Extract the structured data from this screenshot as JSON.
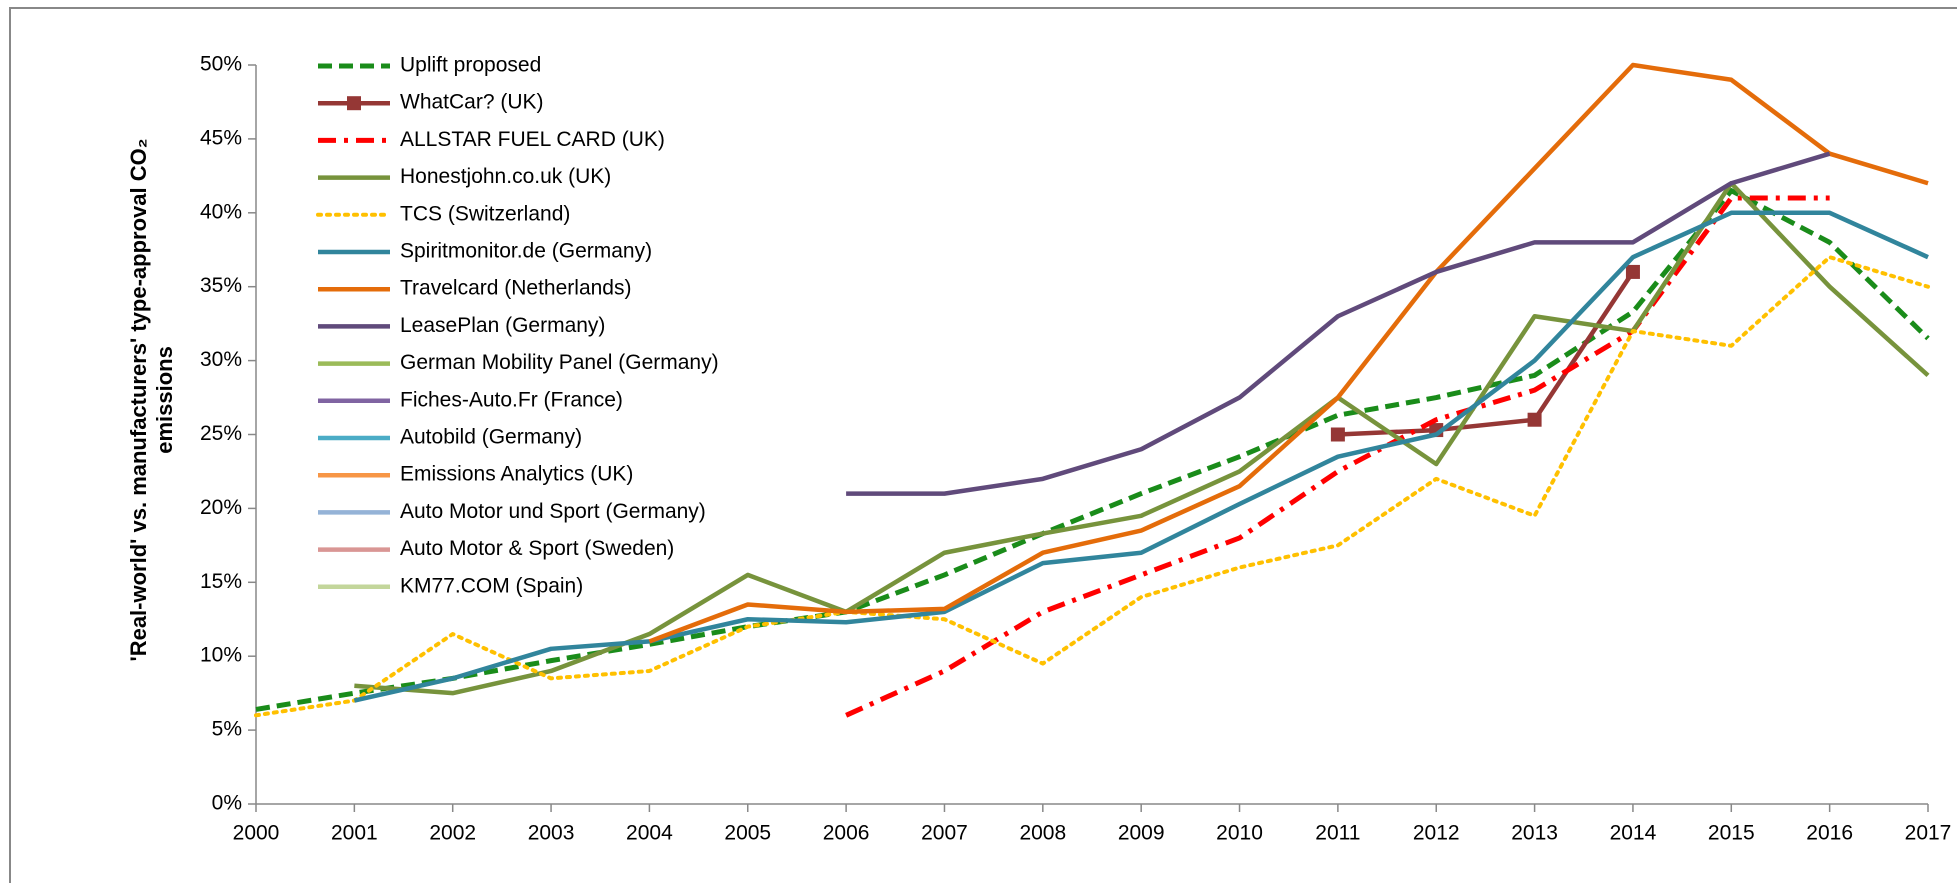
{
  "chart_data": {
    "type": "line",
    "ylabel": [
      "'Real-world' vs. manufacturers' type-approval CO₂",
      "emissions"
    ],
    "x": [
      2000,
      2001,
      2002,
      2003,
      2004,
      2005,
      2006,
      2007,
      2008,
      2009,
      2010,
      2011,
      2012,
      2013,
      2014,
      2015,
      2016,
      2017
    ],
    "xlim": [
      2000,
      2017
    ],
    "xticks": [
      2000,
      2001,
      2002,
      2003,
      2004,
      2005,
      2006,
      2007,
      2008,
      2009,
      2010,
      2011,
      2012,
      2013,
      2014,
      2015,
      2016,
      2017
    ],
    "ylim": [
      0,
      50
    ],
    "yticks": [
      {
        "value": 0,
        "label": "0%"
      },
      {
        "value": 5,
        "label": "5%"
      },
      {
        "value": 10,
        "label": "10%"
      },
      {
        "value": 15,
        "label": "15%"
      },
      {
        "value": 20,
        "label": "20%"
      },
      {
        "value": 25,
        "label": "25%"
      },
      {
        "value": 30,
        "label": "30%"
      },
      {
        "value": 35,
        "label": "35%"
      },
      {
        "value": 40,
        "label": "40%"
      },
      {
        "value": 45,
        "label": "45%"
      },
      {
        "value": 50,
        "label": "50%"
      }
    ],
    "legend": "upper left",
    "series": [
      {
        "name": "Uplift proposed",
        "color": "#1a8c1a",
        "style": "dashed",
        "values": [
          6.4,
          7.5,
          8.5,
          9.7,
          10.8,
          12,
          13,
          15.5,
          18.3,
          21,
          23.5,
          26.3,
          27.5,
          29,
          33.3,
          41.5,
          38,
          31.5
        ]
      },
      {
        "name": "WhatCar? (UK)",
        "color": "#953735",
        "style": "solid",
        "marker": "square",
        "values": [
          null,
          null,
          null,
          null,
          null,
          null,
          null,
          null,
          null,
          null,
          null,
          25,
          25.3,
          26,
          36,
          null,
          null,
          null
        ]
      },
      {
        "name": "ALLSTAR FUEL CARD (UK)",
        "color": "#ff0000",
        "style": "dashdot",
        "values": [
          null,
          null,
          null,
          null,
          null,
          null,
          6,
          9,
          13,
          15.5,
          18,
          22.5,
          26,
          28,
          32,
          41,
          41,
          null
        ]
      },
      {
        "name": "Honestjohn.co.uk (UK)",
        "color": "#77933c",
        "style": "solid",
        "values": [
          null,
          8,
          7.5,
          9,
          11.5,
          15.5,
          13,
          17,
          18.3,
          19.5,
          22.5,
          27.5,
          23,
          33,
          32,
          42,
          35,
          29
        ]
      },
      {
        "name": "TCS (Switzerland)",
        "color": "#ffc000",
        "style": "dotted",
        "values": [
          6,
          7,
          11.5,
          8.5,
          9,
          12,
          13,
          12.5,
          9.5,
          14,
          16,
          17.5,
          22,
          19.5,
          32,
          31,
          37,
          35
        ]
      },
      {
        "name": "Spiritmonitor.de (Germany)",
        "color": "#31859c",
        "style": "solid",
        "values": [
          null,
          7,
          8.5,
          10.5,
          11,
          12.5,
          12.3,
          13,
          16.3,
          17,
          20.3,
          23.5,
          25,
          30,
          37,
          40,
          40,
          37
        ]
      },
      {
        "name": "Travelcard (Netherlands)",
        "color": "#e46c0a",
        "style": "solid",
        "values": [
          null,
          null,
          null,
          null,
          11,
          13.5,
          13,
          13.2,
          17,
          18.5,
          21.5,
          27.5,
          36,
          43,
          50,
          49,
          44,
          42
        ]
      },
      {
        "name": "LeasePlan (Germany)",
        "color": "#604a7b",
        "style": "solid",
        "values": [
          null,
          null,
          null,
          null,
          null,
          null,
          21,
          21,
          22,
          24,
          27.5,
          33,
          36,
          38,
          38,
          42,
          44,
          null
        ]
      },
      {
        "name": "German Mobility Panel (Germany)",
        "color": "#9bbb59",
        "style": "solid",
        "values": [
          null,
          null,
          null,
          null,
          null,
          null,
          null,
          null,
          null,
          null,
          null,
          null,
          null,
          null,
          null,
          null,
          null,
          null
        ]
      },
      {
        "name": "Fiches-Auto.Fr (France)",
        "color": "#8064a2",
        "style": "solid",
        "values": [
          null,
          null,
          null,
          null,
          null,
          null,
          null,
          null,
          null,
          null,
          null,
          null,
          null,
          null,
          null,
          null,
          null,
          null
        ]
      },
      {
        "name": "Autobild (Germany)",
        "color": "#4bacc6",
        "style": "solid",
        "values": [
          null,
          null,
          null,
          null,
          null,
          null,
          null,
          null,
          null,
          null,
          null,
          null,
          null,
          null,
          null,
          null,
          null,
          null
        ]
      },
      {
        "name": "Emissions Analytics (UK)",
        "color": "#f79646",
        "style": "solid",
        "values": [
          null,
          null,
          null,
          null,
          null,
          null,
          null,
          null,
          null,
          null,
          null,
          null,
          null,
          null,
          null,
          null,
          null,
          null
        ]
      },
      {
        "name": "Auto Motor und Sport (Germany)",
        "color": "#95b3d7",
        "style": "solid",
        "values": [
          null,
          null,
          null,
          null,
          null,
          null,
          null,
          null,
          null,
          null,
          null,
          null,
          null,
          null,
          null,
          null,
          null,
          null
        ]
      },
      {
        "name": "Auto Motor & Sport (Sweden)",
        "color": "#d99694",
        "style": "solid",
        "values": [
          null,
          null,
          null,
          null,
          null,
          null,
          null,
          null,
          null,
          null,
          null,
          null,
          null,
          null,
          null,
          null,
          null,
          null
        ]
      },
      {
        "name": "KM77.COM (Spain)",
        "color": "#c3d69b",
        "style": "solid",
        "values": [
          null,
          null,
          null,
          null,
          null,
          null,
          null,
          null,
          null,
          null,
          null,
          null,
          null,
          null,
          null,
          null,
          null,
          null
        ]
      }
    ]
  }
}
